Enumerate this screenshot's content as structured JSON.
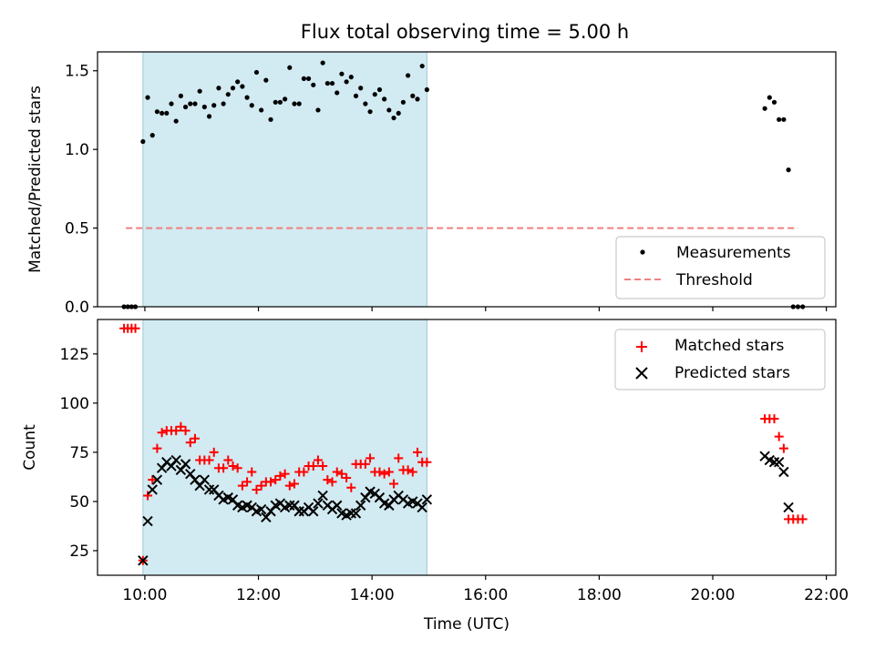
{
  "title": "Flux total observing time = 5.00 h",
  "colors": {
    "shade": "#add8e6",
    "measurement": "#000000",
    "threshold": "#f08080",
    "matched": "#ff0000",
    "predicted": "#000000"
  },
  "chart_data": [
    {
      "type": "scatter",
      "ylabel": "Matched/Predicted stars",
      "ylim": [
        0,
        1.62
      ],
      "yticks": [
        0.0,
        0.5,
        1.0,
        1.5
      ],
      "ytick_labels": [
        "0.0",
        "0.5",
        "1.0",
        "1.5"
      ],
      "xlim": [
        "09:10",
        "22:10"
      ],
      "shaded_interval": [
        "09:58",
        "14:58"
      ],
      "legend": {
        "position": "lower-right",
        "entries": [
          "Measurements",
          "Threshold"
        ]
      },
      "threshold": {
        "name": "Threshold",
        "x": [
          "09:40",
          "21:30"
        ],
        "y": 0.5
      },
      "series": [
        {
          "name": "Measurements",
          "x": [
            "09:38",
            "09:42",
            "09:46",
            "09:50",
            "09:58",
            "10:03",
            "10:08",
            "10:13",
            "10:18",
            "10:23",
            "10:28",
            "10:33",
            "10:38",
            "10:43",
            "10:48",
            "10:53",
            "10:58",
            "11:03",
            "11:08",
            "11:13",
            "11:18",
            "11:23",
            "11:28",
            "11:33",
            "11:38",
            "11:43",
            "11:48",
            "11:53",
            "11:58",
            "12:03",
            "12:08",
            "12:13",
            "12:18",
            "12:23",
            "12:28",
            "12:33",
            "12:38",
            "12:43",
            "12:48",
            "12:53",
            "12:58",
            "13:03",
            "13:08",
            "13:13",
            "13:18",
            "13:23",
            "13:28",
            "13:33",
            "13:38",
            "13:43",
            "13:48",
            "13:53",
            "13:58",
            "14:03",
            "14:08",
            "14:13",
            "14:18",
            "14:23",
            "14:28",
            "14:33",
            "14:38",
            "14:43",
            "14:48",
            "14:53",
            "14:58",
            "20:55",
            "21:00",
            "21:05",
            "21:10",
            "21:15",
            "21:20",
            "21:25",
            "21:30",
            "21:35"
          ],
          "y": [
            0,
            0,
            0,
            0,
            1.05,
            1.33,
            1.09,
            1.24,
            1.23,
            1.23,
            1.29,
            1.18,
            1.34,
            1.27,
            1.29,
            1.29,
            1.37,
            1.27,
            1.21,
            1.28,
            1.39,
            1.29,
            1.35,
            1.39,
            1.43,
            1.4,
            1.33,
            1.28,
            1.49,
            1.25,
            1.44,
            1.19,
            1.3,
            1.3,
            1.32,
            1.52,
            1.29,
            1.29,
            1.45,
            1.45,
            1.41,
            1.25,
            1.55,
            1.42,
            1.42,
            1.36,
            1.48,
            1.43,
            1.46,
            1.34,
            1.39,
            1.29,
            1.24,
            1.35,
            1.38,
            1.32,
            1.25,
            1.2,
            1.23,
            1.3,
            1.47,
            1.34,
            1.32,
            1.53,
            1.38,
            1.26,
            1.33,
            1.3,
            1.19,
            1.19,
            0.87,
            0,
            0,
            0
          ]
        }
      ]
    },
    {
      "type": "scatter",
      "xlabel": "Time (UTC)",
      "ylabel": "Count",
      "ylim": [
        12.5,
        142.5
      ],
      "yticks": [
        25,
        50,
        75,
        100,
        125
      ],
      "ytick_labels": [
        "25",
        "50",
        "75",
        "100",
        "125"
      ],
      "xlim": [
        "09:10",
        "22:10"
      ],
      "xticks": [
        "10:00",
        "12:00",
        "14:00",
        "16:00",
        "18:00",
        "20:00",
        "22:00"
      ],
      "xtick_labels": [
        "10:00",
        "12:00",
        "14:00",
        "16:00",
        "18:00",
        "20:00",
        "22:00"
      ],
      "shaded_interval": [
        "09:58",
        "14:58"
      ],
      "legend": {
        "position": "upper-right",
        "entries": [
          "Matched stars",
          "Predicted stars"
        ]
      },
      "series": [
        {
          "name": "Matched stars",
          "x": [
            "09:38",
            "09:42",
            "09:46",
            "09:50",
            "09:58",
            "10:03",
            "10:08",
            "10:13",
            "10:18",
            "10:23",
            "10:28",
            "10:33",
            "10:38",
            "10:43",
            "10:48",
            "10:53",
            "10:58",
            "11:03",
            "11:08",
            "11:13",
            "11:18",
            "11:23",
            "11:28",
            "11:33",
            "11:38",
            "11:43",
            "11:48",
            "11:53",
            "11:58",
            "12:03",
            "12:08",
            "12:13",
            "12:18",
            "12:23",
            "12:28",
            "12:33",
            "12:38",
            "12:43",
            "12:48",
            "12:53",
            "12:58",
            "13:03",
            "13:08",
            "13:13",
            "13:18",
            "13:23",
            "13:28",
            "13:33",
            "13:38",
            "13:43",
            "13:48",
            "13:53",
            "13:58",
            "14:03",
            "14:08",
            "14:13",
            "14:18",
            "14:23",
            "14:28",
            "14:33",
            "14:38",
            "14:43",
            "14:48",
            "14:53",
            "14:58",
            "20:55",
            "21:00",
            "21:05",
            "21:10",
            "21:15",
            "21:20",
            "21:25",
            "21:30",
            "21:35"
          ],
          "y": [
            138,
            138,
            138,
            138,
            20,
            53,
            61,
            77,
            85,
            86,
            86,
            86,
            88,
            86,
            80,
            82,
            71,
            71,
            71,
            75,
            67,
            67,
            71,
            68,
            67,
            58,
            60,
            65,
            56,
            58,
            60,
            60,
            61,
            63,
            64,
            58,
            59,
            65,
            65,
            68,
            68,
            71,
            68,
            61,
            60,
            65,
            64,
            62,
            57,
            69,
            69,
            69,
            72,
            65,
            65,
            64,
            65,
            59,
            72,
            66,
            66,
            65,
            75,
            70,
            70,
            92,
            92,
            92,
            83,
            77,
            41,
            41,
            41,
            41
          ]
        },
        {
          "name": "Predicted stars",
          "x": [
            "09:58",
            "10:03",
            "10:08",
            "10:13",
            "10:18",
            "10:23",
            "10:28",
            "10:33",
            "10:38",
            "10:43",
            "10:48",
            "10:53",
            "10:58",
            "11:03",
            "11:08",
            "11:13",
            "11:18",
            "11:23",
            "11:28",
            "11:33",
            "11:38",
            "11:43",
            "11:48",
            "11:53",
            "11:58",
            "12:03",
            "12:08",
            "12:13",
            "12:18",
            "12:23",
            "12:28",
            "12:33",
            "12:38",
            "12:43",
            "12:48",
            "12:53",
            "12:58",
            "13:03",
            "13:08",
            "13:13",
            "13:18",
            "13:23",
            "13:28",
            "13:33",
            "13:38",
            "13:43",
            "13:48",
            "13:53",
            "13:58",
            "14:03",
            "14:08",
            "14:13",
            "14:18",
            "14:23",
            "14:28",
            "14:33",
            "14:38",
            "14:43",
            "14:48",
            "14:53",
            "14:58",
            "20:55",
            "21:00",
            "21:05",
            "21:10",
            "21:15",
            "21:20"
          ],
          "y": [
            20,
            40,
            56,
            61,
            67,
            70,
            68,
            71,
            66,
            69,
            64,
            61,
            58,
            61,
            56,
            56,
            53,
            51,
            52,
            51,
            48,
            47,
            48,
            47,
            45,
            46,
            42,
            45,
            48,
            49,
            47,
            48,
            48,
            45,
            45,
            47,
            45,
            49,
            53,
            48,
            46,
            48,
            44,
            43,
            44,
            44,
            48,
            52,
            55,
            54,
            52,
            49,
            48,
            51,
            53,
            51,
            49,
            50,
            49,
            47,
            51,
            73,
            71,
            70,
            70,
            65,
            47
          ]
        }
      ]
    }
  ]
}
